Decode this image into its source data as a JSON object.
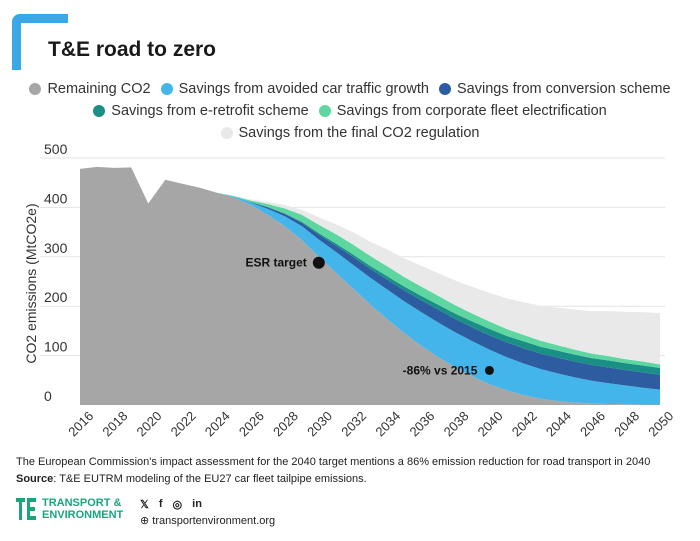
{
  "header": {
    "title": "T&E road to zero"
  },
  "chart_data": {
    "type": "area",
    "title": "T&E road to zero",
    "ylabel": "CO2 emissions (MtCO2e)",
    "xlabel": "",
    "ylim": [
      0,
      500
    ],
    "yticks": [
      "500",
      "400",
      "300",
      "200",
      "100",
      "0"
    ],
    "xticks": [
      "2016",
      "2018",
      "2020",
      "2022",
      "2024",
      "2026",
      "2028",
      "2030",
      "2032",
      "2034",
      "2036",
      "2038",
      "2040",
      "2042",
      "2044",
      "2046",
      "2048",
      "2050"
    ],
    "years": [
      2016,
      2017,
      2018,
      2019,
      2020,
      2021,
      2022,
      2023,
      2024,
      2025,
      2026,
      2027,
      2028,
      2029,
      2030,
      2031,
      2032,
      2033,
      2034,
      2035,
      2036,
      2037,
      2038,
      2039,
      2040,
      2041,
      2042,
      2043,
      2044,
      2045,
      2046,
      2047,
      2048,
      2049,
      2050
    ],
    "series": [
      {
        "name": "Remaining CO2",
        "color": "#a6a6a6",
        "values": [
          478,
          482,
          480,
          481,
          408,
          456,
          448,
          440,
          430,
          420,
          405,
          385,
          362,
          334,
          300,
          268,
          236,
          204,
          174,
          146,
          120,
          97,
          76,
          58,
          42,
          30,
          20,
          13,
          8,
          5,
          3,
          2,
          1.5,
          1,
          1
        ]
      },
      {
        "name": "Savings from avoided car traffic growth",
        "color": "#43b5ea",
        "values": [
          0,
          0,
          0,
          0,
          0,
          0,
          0,
          0,
          0,
          2,
          5,
          12,
          20,
          28,
          35,
          42,
          48,
          54,
          60,
          64,
          68,
          70,
          71,
          71,
          70,
          67,
          64,
          60,
          56,
          51,
          46,
          42,
          38,
          34,
          30
        ]
      },
      {
        "name": "Savings from conversion scheme",
        "color": "#2d5da0",
        "values": [
          0,
          0,
          0,
          0,
          0,
          0,
          0,
          0,
          0,
          0,
          1,
          3,
          5,
          7,
          10,
          13,
          16,
          18,
          20,
          22,
          24,
          26,
          27,
          28,
          29,
          30,
          31,
          31,
          32,
          32,
          32,
          32,
          31,
          31,
          30
        ]
      },
      {
        "name": "Savings from e-retrofit scheme",
        "color": "#1a8f86",
        "values": [
          0,
          0,
          0,
          0,
          0,
          0,
          0,
          0,
          0,
          0,
          0,
          1,
          1,
          2,
          3,
          4,
          5,
          6,
          7,
          8,
          9,
          10,
          11,
          12,
          13,
          13,
          14,
          14,
          14,
          14,
          14,
          14,
          14,
          14,
          14
        ]
      },
      {
        "name": "Savings from corporate fleet electrification",
        "color": "#5dd6a0",
        "values": [
          0,
          0,
          0,
          0,
          0,
          0,
          0,
          0,
          0,
          1,
          3,
          6,
          10,
          14,
          17,
          19,
          20,
          20,
          20,
          19,
          19,
          18,
          17,
          16,
          15,
          14,
          13,
          12,
          11,
          10,
          9,
          9,
          8,
          8,
          7
        ]
      },
      {
        "name": "Savings from the final CO2 regulation",
        "color": "#e9e9e9",
        "values": [
          0,
          0,
          0,
          0,
          0,
          0,
          0,
          0,
          0,
          1,
          2,
          4,
          7,
          10,
          15,
          20,
          25,
          29,
          34,
          38,
          42,
          46,
          50,
          54,
          58,
          62,
          66,
          71,
          76,
          81,
          86,
          91,
          96,
          100,
          104
        ]
      }
    ],
    "annotations": [
      {
        "label": "ESR target",
        "x": 2030,
        "y": 288
      },
      {
        "label": "-86% vs 2015",
        "x": 2040,
        "y": 70
      }
    ]
  },
  "footnote": "The European Commission's impact assessment for the 2040 target mentions a 86% emission reduction for road transport in 2040",
  "source": {
    "label": "Source",
    "text": ": T&E EUTRM modeling of the EU27 car fleet tailpipe emissions."
  },
  "branding": {
    "logo_line1": "TRANSPORT &",
    "logo_line2": "ENVIRONMENT",
    "twitter": "𝕏",
    "facebook": "f",
    "instagram": "◎",
    "linkedin": "in",
    "website": "⊕ transportenvironment.org"
  },
  "colors": {
    "accent": "#3aa7e6",
    "brand": "#19a57e"
  }
}
